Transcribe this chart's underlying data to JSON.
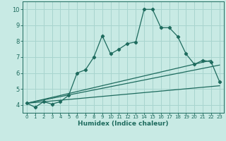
{
  "xlabel": "Humidex (Indice chaleur)",
  "background_color": "#c8eae4",
  "grid_color": "#a8d4ce",
  "line_color": "#1e6b5e",
  "xlim": [
    -0.5,
    23.5
  ],
  "ylim": [
    3.5,
    10.5
  ],
  "yticks": [
    4,
    5,
    6,
    7,
    8,
    9,
    10
  ],
  "xticks": [
    0,
    1,
    2,
    3,
    4,
    5,
    6,
    7,
    8,
    9,
    10,
    11,
    12,
    13,
    14,
    15,
    16,
    17,
    18,
    19,
    20,
    21,
    22,
    23
  ],
  "series_main": {
    "x": [
      0,
      1,
      2,
      3,
      4,
      5,
      6,
      7,
      8,
      9,
      10,
      11,
      12,
      13,
      14,
      15,
      16,
      17,
      18,
      19,
      20,
      21,
      22,
      23
    ],
    "y": [
      4.1,
      3.85,
      4.2,
      4.05,
      4.2,
      4.6,
      6.0,
      6.2,
      7.0,
      8.35,
      7.2,
      7.5,
      7.85,
      7.95,
      10.0,
      10.0,
      8.85,
      8.85,
      8.3,
      7.2,
      6.55,
      6.8,
      6.7,
      5.45
    ]
  },
  "series_lines": [
    {
      "x": [
        0,
        22
      ],
      "y": [
        4.1,
        6.8
      ]
    },
    {
      "x": [
        0,
        23
      ],
      "y": [
        4.1,
        6.5
      ]
    },
    {
      "x": [
        0,
        23
      ],
      "y": [
        4.1,
        5.2
      ]
    }
  ]
}
